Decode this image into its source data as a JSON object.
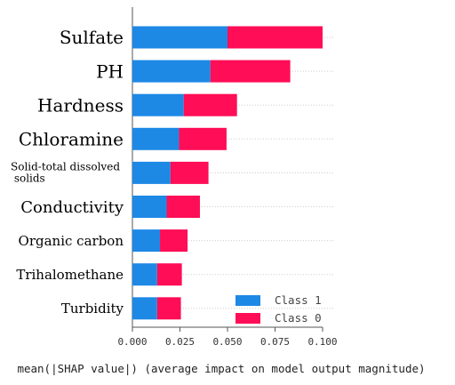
{
  "chart_data": {
    "type": "bar",
    "orientation": "horizontal",
    "stacked": true,
    "categories": [
      "Sulfate",
      "PH",
      "Hardness",
      "Chloramine",
      "Solid-total dissolved solids",
      "Conductivity",
      "Organic carbon",
      "Trihalomethane",
      "Turbidity"
    ],
    "series": [
      {
        "name": "Class 1",
        "color": "#1E88E5",
        "values": [
          0.05,
          0.041,
          0.027,
          0.0245,
          0.02,
          0.018,
          0.0145,
          0.013,
          0.013
        ]
      },
      {
        "name": "Class 0",
        "color": "#FF0D57",
        "values": [
          0.05,
          0.042,
          0.028,
          0.025,
          0.02,
          0.0175,
          0.0145,
          0.013,
          0.0125
        ]
      }
    ],
    "xlabel": "mean(|SHAP value|) (average impact on model output magnitude)",
    "xticks": [
      "0.000",
      "0.025",
      "0.050",
      "0.075",
      "0.100"
    ],
    "xlim": [
      0,
      0.1
    ],
    "legend_position": "lower-right",
    "grid": "horizontal dashed"
  }
}
